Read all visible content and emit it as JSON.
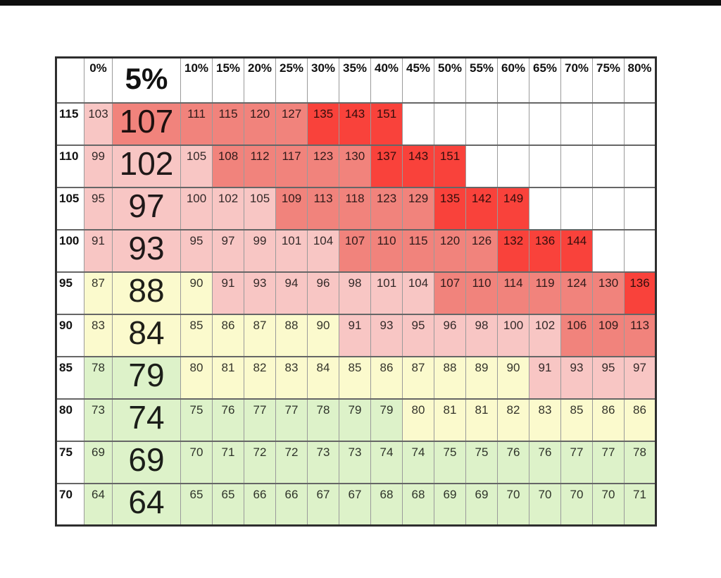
{
  "page": {
    "background": "#ffffff",
    "top_bar_color": "#0e0e0e",
    "table_outer_border_color": "#2e2e2e",
    "grid_line_color": "#8a8a8a"
  },
  "chart_data": {
    "type": "heatmap",
    "title": "",
    "x_categories": [
      "0%",
      "5%",
      "10%",
      "15%",
      "20%",
      "25%",
      "30%",
      "35%",
      "40%",
      "45%",
      "50%",
      "55%",
      "60%",
      "65%",
      "70%",
      "75%",
      "80%"
    ],
    "y_categories": [
      "115",
      "110",
      "105",
      "100",
      "95",
      "90",
      "85",
      "80",
      "75",
      "70"
    ],
    "highlighted_column": "5%",
    "matrix": [
      [
        103,
        107,
        111,
        115,
        120,
        127,
        135,
        143,
        151,
        null,
        null,
        null,
        null,
        null,
        null,
        null,
        null
      ],
      [
        99,
        102,
        105,
        108,
        112,
        117,
        123,
        130,
        137,
        143,
        151,
        null,
        null,
        null,
        null,
        null,
        null
      ],
      [
        95,
        97,
        100,
        102,
        105,
        109,
        113,
        118,
        123,
        129,
        135,
        142,
        149,
        null,
        null,
        null,
        null
      ],
      [
        91,
        93,
        95,
        97,
        99,
        101,
        104,
        107,
        110,
        115,
        120,
        126,
        132,
        136,
        144,
        null,
        null
      ],
      [
        87,
        88,
        90,
        91,
        93,
        94,
        96,
        98,
        101,
        104,
        107,
        110,
        114,
        119,
        124,
        130,
        136
      ],
      [
        83,
        84,
        85,
        86,
        87,
        88,
        90,
        91,
        93,
        95,
        96,
        98,
        100,
        102,
        106,
        109,
        113
      ],
      [
        78,
        79,
        80,
        81,
        82,
        83,
        84,
        85,
        86,
        87,
        88,
        89,
        90,
        91,
        93,
        95,
        97
      ],
      [
        73,
        74,
        75,
        76,
        77,
        77,
        78,
        79,
        79,
        80,
        81,
        81,
        82,
        83,
        85,
        86,
        86
      ],
      [
        69,
        69,
        70,
        71,
        72,
        72,
        73,
        73,
        74,
        74,
        75,
        75,
        76,
        76,
        77,
        77,
        78
      ],
      [
        64,
        64,
        65,
        65,
        66,
        66,
        67,
        67,
        68,
        68,
        69,
        69,
        70,
        70,
        70,
        70,
        71
      ]
    ],
    "color_bands": [
      {
        "name": "green",
        "max": 79,
        "color": "#ddf2c9"
      },
      {
        "name": "yellow",
        "max": 90,
        "color": "#fbfacd"
      },
      {
        "name": "light-red",
        "max": 105,
        "color": "#f8c6c4"
      },
      {
        "name": "medium-red",
        "max": 131,
        "color": "#f1837c"
      },
      {
        "name": "bright-red",
        "max": 9999,
        "color": "#f9423b"
      }
    ],
    "empty_cell_color": "#ffffff",
    "layout": {
      "corner_col_width": 40,
      "first_col_width": 40,
      "big_col_width": 97,
      "value_col_width": 45,
      "header_row_height": 64,
      "data_row_height": 60
    }
  }
}
